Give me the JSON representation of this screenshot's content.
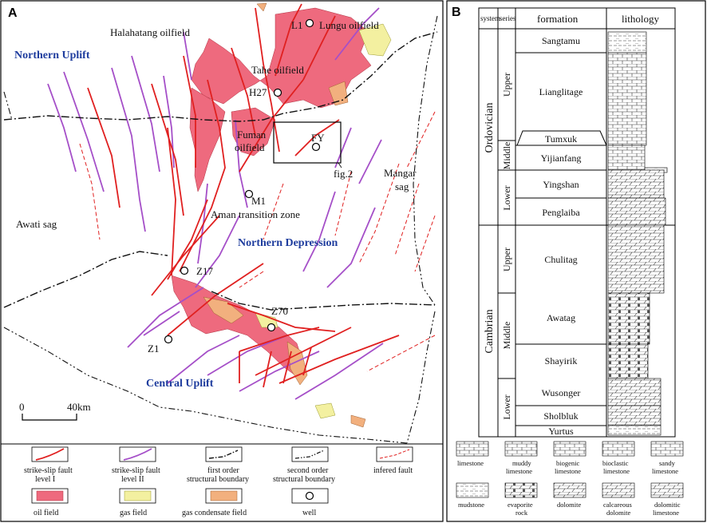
{
  "panel_a": {
    "letter": "A",
    "regions": {
      "northern_uplift": "Northern Uplift",
      "northern_depression": "Northern Depression",
      "central_uplift": "Central Uplift",
      "awati_sag": "Awati sag",
      "mangar_sag_line1": "Mangar",
      "mangar_sag_line2": "sag",
      "aman_zone": "Aman transition zone"
    },
    "fields": {
      "halahatang": "Halahatang oilfield",
      "lungu": "Lungu oilfield",
      "tahe": "Tahe oilfield",
      "fuman_line1": "Fuman",
      "fuman_line2": "oilfield"
    },
    "wells": {
      "l1": "L1",
      "h27": "H27",
      "fy": "FY",
      "m1": "M1",
      "z17": "Z17",
      "z70": "Z70",
      "z1": "Z1"
    },
    "fig_ref": "fig.2",
    "scale": {
      "zero": "0",
      "max": "40km"
    },
    "legend": {
      "fault1": [
        "strike-slip fault",
        "level I"
      ],
      "fault2": [
        "strike-slip fault",
        "level II"
      ],
      "boundary1": [
        "first order",
        "structural boundary"
      ],
      "boundary2": [
        "second order",
        "structural  boundary"
      ],
      "inferred": "infered fault",
      "oil": "oil field",
      "gas": "gas field",
      "condensate": "gas condensate field",
      "well": "well"
    },
    "colors": {
      "oil": "#ee6a7e",
      "gas": "#f3f0a0",
      "condensate": "#f2b07e",
      "fault1": "#e02020",
      "fault2": "#a54fc8",
      "inferred": "#e02020"
    }
  },
  "panel_b": {
    "letter": "B",
    "headers": {
      "system": "system",
      "series": "series",
      "formation": "formation",
      "lithology": "lithology"
    },
    "systems": {
      "ordovician": "Ordovician",
      "cambrian": "Cambrian"
    },
    "series": {
      "o_upper": "Upper",
      "o_middle": "Middle",
      "o_lower": "Lower",
      "c_upper": "Upper",
      "c_middle": "Middle",
      "c_lower": "Lower"
    },
    "formations": {
      "sangtamu": "Sangtamu",
      "lianglitage": "Lianglitage",
      "tumxuk": "Tumxuk",
      "yijianfang": "Yijianfang",
      "yingshan": "Yingshan",
      "penglaiba": "Penglaiba",
      "chulitag": "Chulitag",
      "awatag": "Awatag",
      "shayirik": "Shayirik",
      "wusonger": "Wusonger",
      "sholbluk": "Sholbluk",
      "yurtus": "Yurtus"
    },
    "lith_legend": {
      "limestone": [
        "limestone"
      ],
      "muddy": [
        "muddy",
        "limestone"
      ],
      "biogenic": [
        "biogenic",
        "limestone"
      ],
      "bioclastic": [
        "bioclastic",
        "limestone"
      ],
      "sandy": [
        "sandy",
        "limestone"
      ],
      "mudstone": [
        "mudstone"
      ],
      "evaporite": [
        "evaporite",
        "rock"
      ],
      "dolomite": [
        "dolomite"
      ],
      "calcareous": [
        "calcareous",
        "dolomite"
      ],
      "dolomitic": [
        "dolomitic",
        "limestone"
      ]
    }
  }
}
